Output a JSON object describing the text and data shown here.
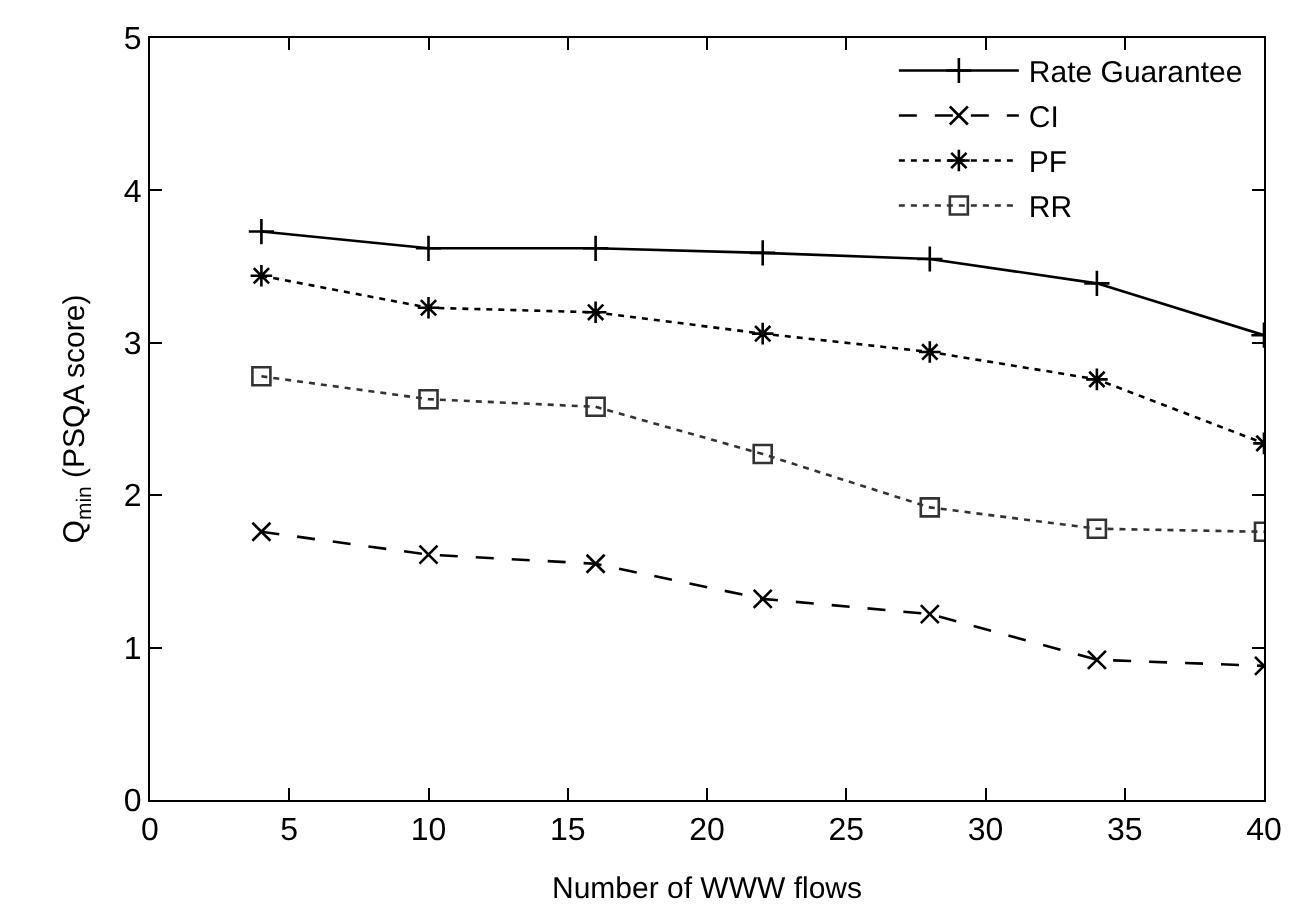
{
  "chart_data": {
    "type": "line",
    "xlabel": "Number of WWW flows",
    "ylabel": "Q$_{min}$ (PSQA score)",
    "x": [
      4,
      10,
      16,
      22,
      28,
      34,
      40
    ],
    "xlim": [
      0,
      40
    ],
    "xticks": [
      0,
      5,
      10,
      15,
      20,
      25,
      30,
      35,
      40
    ],
    "ylim": [
      0,
      5
    ],
    "yticks": [
      0,
      1,
      2,
      3,
      4,
      5
    ],
    "legend": "top right",
    "series": [
      {
        "name": "Rate Guarantee",
        "color": "#000000",
        "marker": "cross",
        "line_style": "solid",
        "values": [
          3.73,
          3.62,
          3.62,
          3.59,
          3.55,
          3.39,
          3.05
        ]
      },
      {
        "name": "CI",
        "color": "#000000",
        "marker": "x",
        "line_style": "dashed",
        "values": [
          1.76,
          1.61,
          1.55,
          1.32,
          1.22,
          0.92,
          0.88
        ]
      },
      {
        "name": "PF",
        "color": "#000000",
        "marker": "cross",
        "line_style": "dotted",
        "values": [
          3.44,
          3.23,
          3.2,
          3.06,
          2.94,
          2.76,
          2.34
        ]
      },
      {
        "name": "RR",
        "color": "#333333",
        "marker": "square",
        "line_style": "dotted",
        "values": [
          2.78,
          2.63,
          2.58,
          2.27,
          1.92,
          1.78,
          1.76
        ]
      }
    ]
  }
}
